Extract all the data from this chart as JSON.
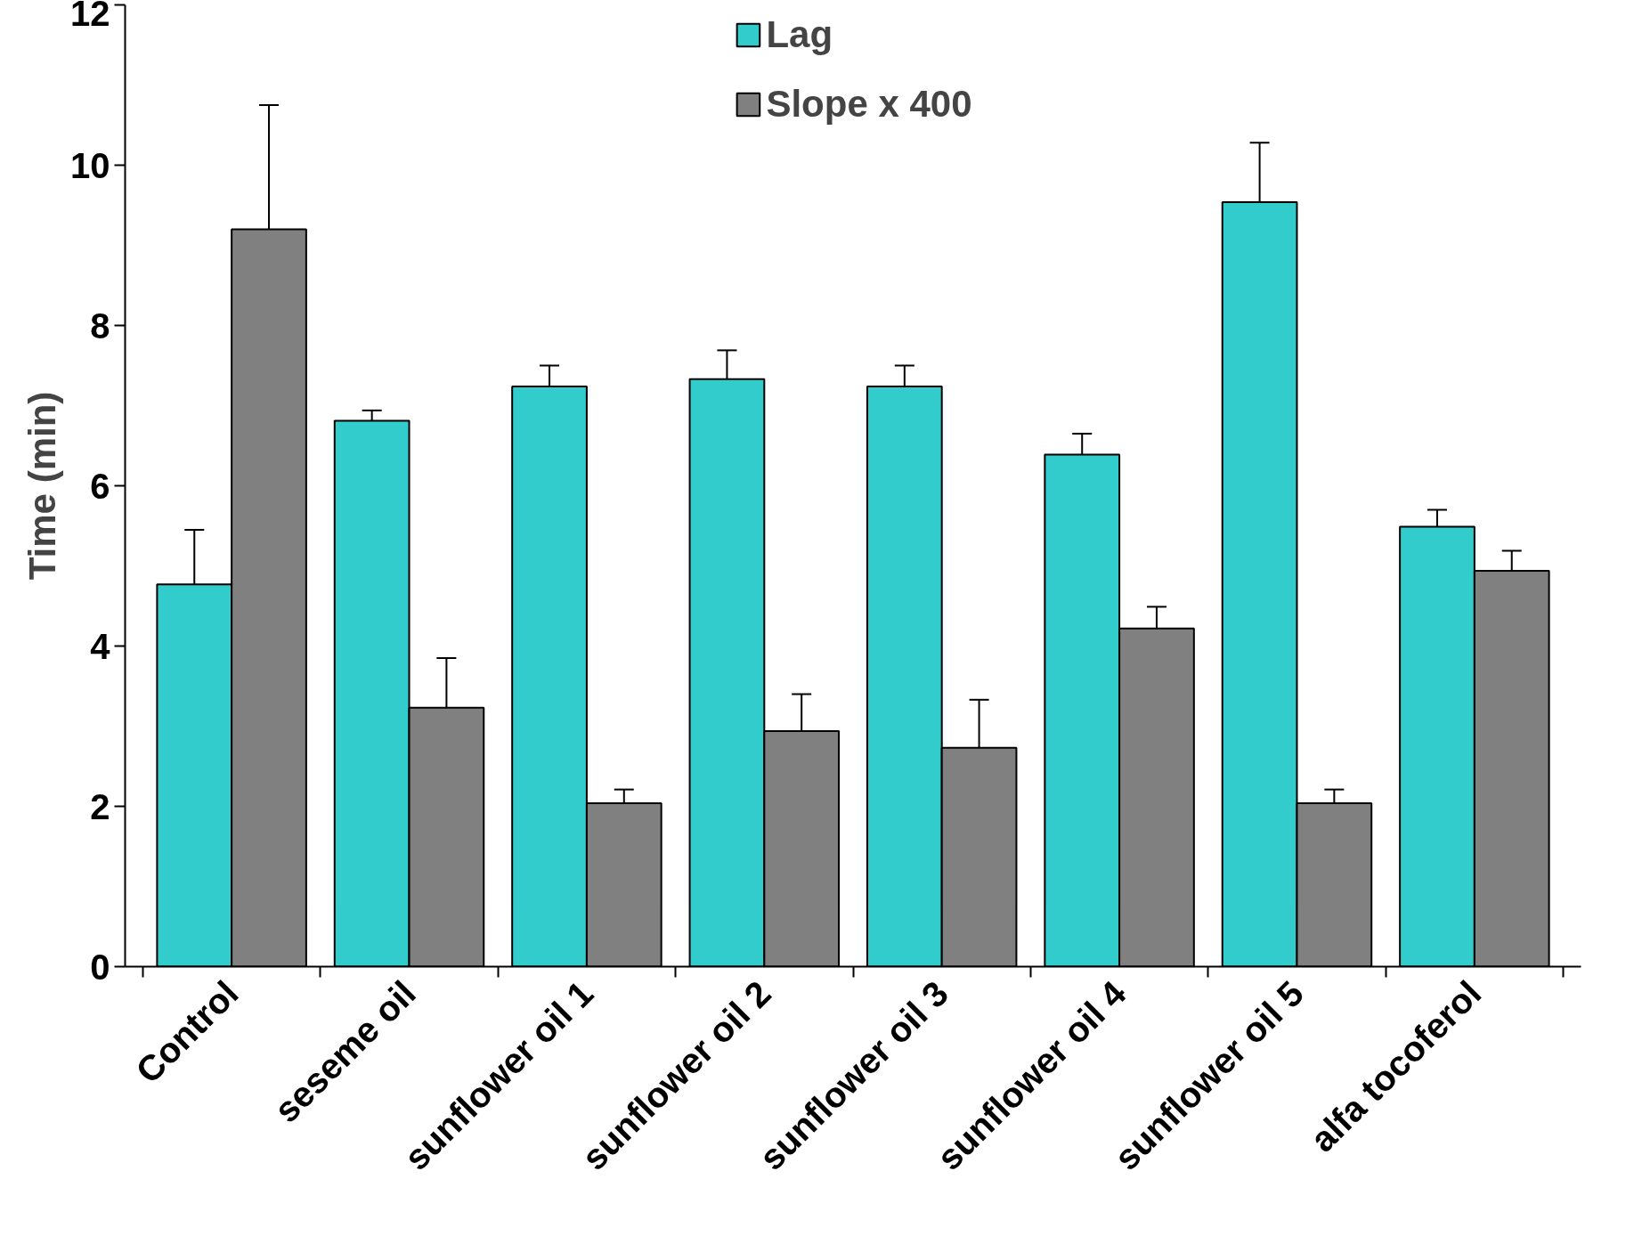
{
  "chart_data": {
    "type": "bar",
    "ylabel": "Time (min)",
    "categories": [
      "Control",
      "seseme oil",
      "sunflower oil 1",
      "sunflower oil 2",
      "sunflower oil 3",
      "sunflower oil 4",
      "sunflower oil 5",
      "alfa tocoferol"
    ],
    "series": [
      {
        "name": "Lag",
        "color": "#33cccc",
        "values": [
          4.77,
          6.81,
          7.24,
          7.33,
          7.24,
          6.39,
          9.54,
          5.49
        ],
        "errors": [
          0.68,
          0.13,
          0.26,
          0.36,
          0.26,
          0.26,
          0.74,
          0.21
        ]
      },
      {
        "name": "Slope x 400",
        "color": "#808080",
        "values": [
          9.2,
          3.23,
          2.04,
          2.94,
          2.73,
          4.22,
          2.04,
          4.94
        ],
        "errors": [
          1.55,
          0.62,
          0.17,
          0.46,
          0.6,
          0.27,
          0.17,
          0.25
        ]
      }
    ],
    "ylim": [
      0,
      12
    ],
    "yticks": [
      0,
      2,
      4,
      6,
      8,
      10,
      12
    ],
    "grid": false,
    "legend": "top"
  }
}
